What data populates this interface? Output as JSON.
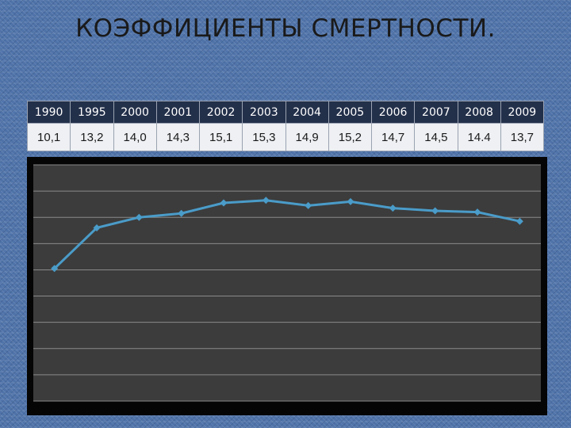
{
  "title": "КОЭФФИЦИЕНТЫ СМЕРТНОСТИ.",
  "table": {
    "years": [
      "1990",
      "1995",
      "2000",
      "2001",
      "2002",
      "2003",
      "2004",
      "2005",
      "2006",
      "2007",
      "2008",
      "2009"
    ],
    "values": [
      "10,1",
      "13,2",
      "14,0",
      "14,3",
      "15,1",
      "15,3",
      "14,9",
      "15,2",
      "14,7",
      "14,5",
      "14.4",
      "13,7"
    ]
  },
  "colors": {
    "line": "#4a9cc9",
    "plot_bg": "#3c3c3c",
    "gridline": "#8a8a8a"
  },
  "chart_data": {
    "type": "line",
    "categories": [
      "1990",
      "1995",
      "2000",
      "2001",
      "2002",
      "2003",
      "2004",
      "2005",
      "2006",
      "2007",
      "2008",
      "2009"
    ],
    "series": [
      {
        "values": [
          10.1,
          13.2,
          14.0,
          14.3,
          15.1,
          15.3,
          14.9,
          15.2,
          14.7,
          14.5,
          14.4,
          13.7
        ]
      }
    ],
    "ylim": [
      0,
      18
    ],
    "grid": true,
    "legend": "none"
  }
}
